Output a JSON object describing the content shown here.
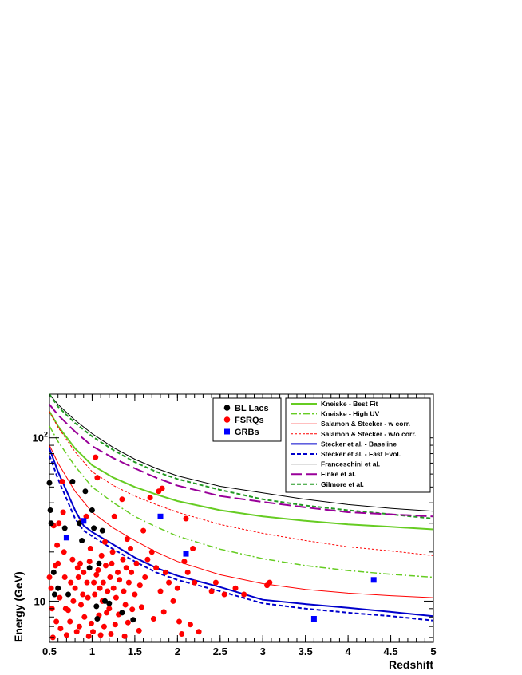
{
  "chart_data": {
    "type": "scatter",
    "xlabel": "Redshift",
    "ylabel": "Energy (GeV)",
    "xlim": [
      0.5,
      5
    ],
    "ylim": [
      5.6,
      185
    ],
    "yscale": "log",
    "x_ticks": [
      "0.5",
      "1",
      "1.5",
      "2",
      "2.5",
      "3",
      "3.5",
      "4",
      "4.5",
      "5"
    ],
    "y_ticks": [
      {
        "value": 10,
        "label": "10"
      },
      {
        "value": 100,
        "label": "10",
        "exp": "2"
      }
    ],
    "legends": {
      "sources": [
        {
          "name": "BL Lacs",
          "color": "#000000",
          "marker": "circle"
        },
        {
          "name": "FSRQs",
          "color": "#ff0000",
          "marker": "circle"
        },
        {
          "name": "GRBs",
          "color": "#0000ff",
          "marker": "square"
        }
      ],
      "models": [
        {
          "name": "Kneiske - Best Fit",
          "color": "#66cc22",
          "style": "solid",
          "width": 2
        },
        {
          "name": "Kneiske - High UV",
          "color": "#66cc22",
          "style": "dashdot",
          "width": 1.5
        },
        {
          "name": "Salamon & Stecker - w corr.",
          "color": "#ff0000",
          "style": "solid",
          "width": 1
        },
        {
          "name": "Salamon & Stecker - w/o corr.",
          "color": "#ff0000",
          "style": "dashed-fine",
          "width": 1
        },
        {
          "name": "Stecker et al. - Baseline",
          "color": "#0000cc",
          "style": "solid",
          "width": 2
        },
        {
          "name": "Stecker et al. - Fast Evol.",
          "color": "#0000cc",
          "style": "dashed",
          "width": 2
        },
        {
          "name": "Franceschini et al.",
          "color": "#000000",
          "style": "solid",
          "width": 1
        },
        {
          "name": "Finke et al.",
          "color": "#990099",
          "style": "longdash",
          "width": 2
        },
        {
          "name": "Gilmore et al.",
          "color": "#229922",
          "style": "dashed",
          "width": 2
        }
      ]
    },
    "curves": [
      {
        "name": "Franceschini et al.",
        "points": [
          [
            0.5,
            185
          ],
          [
            0.6,
            160
          ],
          [
            0.8,
            128
          ],
          [
            1.0,
            106
          ],
          [
            1.25,
            87
          ],
          [
            1.5,
            74
          ],
          [
            1.75,
            65
          ],
          [
            2.0,
            58.5
          ],
          [
            2.5,
            50.5
          ],
          [
            3.0,
            46
          ],
          [
            3.5,
            42
          ],
          [
            4.0,
            39
          ],
          [
            4.5,
            37
          ],
          [
            5.0,
            35.5
          ]
        ]
      },
      {
        "name": "Gilmore et al.",
        "points": [
          [
            0.5,
            185
          ],
          [
            0.6,
            155
          ],
          [
            0.8,
            123
          ],
          [
            1.0,
            102
          ],
          [
            1.25,
            84
          ],
          [
            1.5,
            71
          ],
          [
            1.75,
            62
          ],
          [
            2.0,
            56
          ],
          [
            2.5,
            48
          ],
          [
            3.0,
            42
          ],
          [
            3.5,
            38.5
          ],
          [
            4.0,
            36
          ],
          [
            4.5,
            34
          ],
          [
            5.0,
            32
          ]
        ]
      },
      {
        "name": "Finke et al.",
        "points": [
          [
            0.5,
            160
          ],
          [
            0.6,
            138
          ],
          [
            0.8,
            109
          ],
          [
            1.0,
            89
          ],
          [
            1.25,
            75
          ],
          [
            1.5,
            65
          ],
          [
            1.75,
            57
          ],
          [
            2.0,
            51
          ],
          [
            2.5,
            44
          ],
          [
            3.0,
            40.5
          ],
          [
            3.5,
            37.5
          ],
          [
            4.0,
            35
          ],
          [
            4.5,
            34
          ],
          [
            5.0,
            33
          ]
        ]
      },
      {
        "name": "Kneiske - Best Fit",
        "points": [
          [
            0.5,
            145
          ],
          [
            0.6,
            118
          ],
          [
            0.8,
            86
          ],
          [
            1.0,
            68
          ],
          [
            1.25,
            57
          ],
          [
            1.5,
            50
          ],
          [
            1.75,
            45
          ],
          [
            2.0,
            41
          ],
          [
            2.5,
            36
          ],
          [
            3.0,
            33
          ],
          [
            3.5,
            31
          ],
          [
            4.0,
            29.5
          ],
          [
            4.5,
            28.5
          ],
          [
            5.0,
            27.5
          ]
        ]
      },
      {
        "name": "Salamon & Stecker - w/o corr.",
        "points": [
          [
            0.5,
            145
          ],
          [
            0.6,
            116
          ],
          [
            0.8,
            82
          ],
          [
            1.0,
            62
          ],
          [
            1.25,
            51
          ],
          [
            1.5,
            44
          ],
          [
            1.75,
            39
          ],
          [
            2.0,
            35
          ],
          [
            2.5,
            29.5
          ],
          [
            3.0,
            26
          ],
          [
            3.5,
            23.5
          ],
          [
            4.0,
            21.5
          ],
          [
            4.5,
            20.3
          ],
          [
            5.0,
            19
          ]
        ]
      },
      {
        "name": "Kneiske - High UV",
        "points": [
          [
            0.5,
            118
          ],
          [
            0.6,
            95
          ],
          [
            0.8,
            67
          ],
          [
            1.0,
            50
          ],
          [
            1.25,
            40
          ],
          [
            1.5,
            33
          ],
          [
            1.75,
            28.5
          ],
          [
            2.0,
            25
          ],
          [
            2.5,
            20.8
          ],
          [
            3.0,
            18.2
          ],
          [
            3.5,
            16.5
          ],
          [
            4.0,
            15.4
          ],
          [
            4.5,
            14.6
          ],
          [
            5.0,
            14
          ]
        ]
      },
      {
        "name": "Salamon & Stecker - w corr.",
        "points": [
          [
            0.5,
            90
          ],
          [
            0.6,
            70
          ],
          [
            0.8,
            47
          ],
          [
            1.0,
            35
          ],
          [
            1.25,
            28
          ],
          [
            1.5,
            23.5
          ],
          [
            1.75,
            20
          ],
          [
            2.0,
            17.5
          ],
          [
            2.5,
            14.5
          ],
          [
            3.0,
            12.8
          ],
          [
            3.5,
            11.8
          ],
          [
            4.0,
            11.2
          ],
          [
            4.5,
            10.8
          ],
          [
            5.0,
            10.5
          ]
        ]
      },
      {
        "name": "Stecker et al. - Baseline",
        "points": [
          [
            0.5,
            86
          ],
          [
            0.6,
            62
          ],
          [
            0.8,
            36
          ],
          [
            0.9,
            29
          ],
          [
            1.0,
            26.5
          ],
          [
            1.2,
            23
          ],
          [
            1.5,
            18.5
          ],
          [
            1.75,
            16
          ],
          [
            2.0,
            14.3
          ],
          [
            2.5,
            12.2
          ],
          [
            3.0,
            10.2
          ],
          [
            3.5,
            9.6
          ],
          [
            4.0,
            9.1
          ],
          [
            4.5,
            8.6
          ],
          [
            5.0,
            8.1
          ]
        ]
      },
      {
        "name": "Stecker et al. - Fast Evol.",
        "points": [
          [
            0.5,
            78
          ],
          [
            0.6,
            56
          ],
          [
            0.8,
            32
          ],
          [
            0.9,
            27
          ],
          [
            1.0,
            25
          ],
          [
            1.2,
            21.5
          ],
          [
            1.5,
            17.5
          ],
          [
            1.75,
            15
          ],
          [
            2.0,
            13.5
          ],
          [
            2.5,
            11.5
          ],
          [
            3.0,
            9.7
          ],
          [
            3.5,
            9.0
          ],
          [
            4.0,
            8.5
          ],
          [
            4.5,
            8.1
          ],
          [
            5.0,
            7.6
          ]
        ]
      }
    ],
    "bl_lacs": [
      [
        0.5,
        53
      ],
      [
        0.51,
        36
      ],
      [
        0.52,
        30
      ],
      [
        0.55,
        15
      ],
      [
        0.56,
        11
      ],
      [
        0.6,
        12
      ],
      [
        0.68,
        28
      ],
      [
        0.72,
        11
      ],
      [
        0.77,
        54
      ],
      [
        0.85,
        30
      ],
      [
        0.88,
        23.5
      ],
      [
        0.92,
        47
      ],
      [
        0.97,
        16
      ],
      [
        1.0,
        36
      ],
      [
        1.02,
        28
      ],
      [
        1.05,
        9.3
      ],
      [
        1.06,
        7.8
      ],
      [
        1.08,
        17
      ],
      [
        1.12,
        27
      ],
      [
        1.15,
        10
      ],
      [
        1.2,
        9.7
      ],
      [
        1.35,
        8.5
      ],
      [
        1.48,
        7.7
      ]
    ],
    "fsrqs": [
      [
        0.5,
        14
      ],
      [
        0.52,
        12
      ],
      [
        0.53,
        9
      ],
      [
        0.54,
        6
      ],
      [
        0.55,
        29
      ],
      [
        0.57,
        16.5
      ],
      [
        0.58,
        7.5
      ],
      [
        0.59,
        22
      ],
      [
        0.6,
        17
      ],
      [
        0.61,
        30
      ],
      [
        0.62,
        10.5
      ],
      [
        0.63,
        6.8
      ],
      [
        0.65,
        54
      ],
      [
        0.66,
        35
      ],
      [
        0.67,
        20
      ],
      [
        0.68,
        14
      ],
      [
        0.69,
        9
      ],
      [
        0.7,
        6.2
      ],
      [
        0.72,
        8.8
      ],
      [
        0.74,
        7.5
      ],
      [
        0.75,
        13
      ],
      [
        0.77,
        18
      ],
      [
        0.78,
        10
      ],
      [
        0.8,
        12
      ],
      [
        0.82,
        6.5
      ],
      [
        0.83,
        16
      ],
      [
        0.84,
        14
      ],
      [
        0.85,
        7
      ],
      [
        0.86,
        17
      ],
      [
        0.87,
        9.5
      ],
      [
        0.88,
        31
      ],
      [
        0.89,
        11
      ],
      [
        0.9,
        15
      ],
      [
        0.91,
        8
      ],
      [
        0.93,
        33
      ],
      [
        0.94,
        13
      ],
      [
        0.95,
        10.5
      ],
      [
        0.96,
        6.1
      ],
      [
        0.97,
        17.5
      ],
      [
        0.98,
        21
      ],
      [
        0.99,
        7.3
      ],
      [
        1.01,
        6.5
      ],
      [
        1.02,
        13
      ],
      [
        1.03,
        11
      ],
      [
        1.04,
        76
      ],
      [
        1.05,
        14.5
      ],
      [
        1.06,
        57
      ],
      [
        1.07,
        15.5
      ],
      [
        1.08,
        8.2
      ],
      [
        1.09,
        12
      ],
      [
        1.1,
        6.2
      ],
      [
        1.11,
        19
      ],
      [
        1.12,
        10
      ],
      [
        1.13,
        13
      ],
      [
        1.14,
        7
      ],
      [
        1.15,
        23
      ],
      [
        1.16,
        16.5
      ],
      [
        1.17,
        8.5
      ],
      [
        1.18,
        11.5
      ],
      [
        1.2,
        9
      ],
      [
        1.21,
        14
      ],
      [
        1.22,
        6.3
      ],
      [
        1.23,
        17
      ],
      [
        1.24,
        20
      ],
      [
        1.25,
        12
      ],
      [
        1.26,
        33
      ],
      [
        1.27,
        7.2
      ],
      [
        1.28,
        10.5
      ],
      [
        1.3,
        15
      ],
      [
        1.31,
        8.3
      ],
      [
        1.32,
        13.5
      ],
      [
        1.35,
        42
      ],
      [
        1.36,
        18
      ],
      [
        1.37,
        11.5
      ],
      [
        1.38,
        6.1
      ],
      [
        1.39,
        9.5
      ],
      [
        1.4,
        16
      ],
      [
        1.41,
        24
      ],
      [
        1.42,
        7.4
      ],
      [
        1.43,
        13
      ],
      [
        1.45,
        21
      ],
      [
        1.46,
        15
      ],
      [
        1.47,
        8.9
      ],
      [
        1.5,
        11
      ],
      [
        1.52,
        17
      ],
      [
        1.55,
        6.6
      ],
      [
        1.56,
        12.5
      ],
      [
        1.58,
        9.2
      ],
      [
        1.6,
        27
      ],
      [
        1.62,
        14
      ],
      [
        1.65,
        18
      ],
      [
        1.68,
        43
      ],
      [
        1.7,
        20
      ],
      [
        1.72,
        7.8
      ],
      [
        1.75,
        16
      ],
      [
        1.78,
        47
      ],
      [
        1.8,
        11.5
      ],
      [
        1.82,
        49
      ],
      [
        1.84,
        8.6
      ],
      [
        1.86,
        15
      ],
      [
        1.9,
        13
      ],
      [
        1.95,
        10
      ],
      [
        2.0,
        12
      ],
      [
        2.02,
        7.5
      ],
      [
        2.05,
        6.3
      ],
      [
        2.08,
        17.5
      ],
      [
        2.1,
        32
      ],
      [
        2.12,
        15
      ],
      [
        2.15,
        7.2
      ],
      [
        2.18,
        21
      ],
      [
        2.2,
        13
      ],
      [
        2.25,
        6.5
      ],
      [
        2.4,
        11.5
      ],
      [
        2.45,
        13
      ],
      [
        2.55,
        11
      ],
      [
        2.68,
        12
      ],
      [
        2.78,
        11
      ],
      [
        3.05,
        12.5
      ],
      [
        3.08,
        13
      ]
    ],
    "grbs": [
      [
        0.7,
        24.5
      ],
      [
        0.9,
        31
      ],
      [
        1.8,
        33
      ],
      [
        2.1,
        19.5
      ],
      [
        3.6,
        7.8
      ],
      [
        4.3,
        13.5
      ]
    ]
  }
}
